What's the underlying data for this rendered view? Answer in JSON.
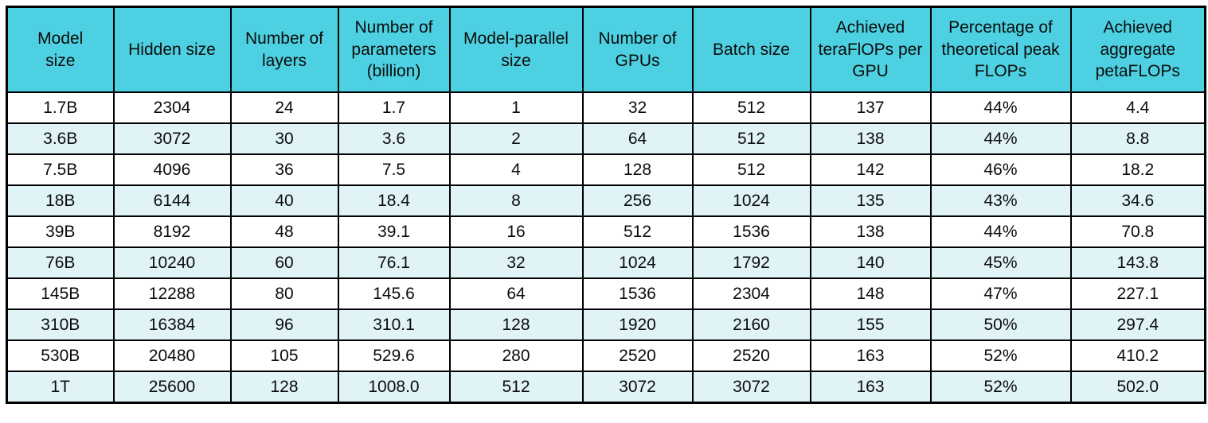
{
  "chart_data": {
    "type": "table",
    "columns": [
      "Model size",
      "Hidden size",
      "Number of layers",
      "Number of parameters (billion)",
      "Model-parallel size",
      "Number of GPUs",
      "Batch size",
      "Achieved teraFlOPs per GPU",
      "Percentage of theoretical peak FLOPs",
      "Achieved aggregate petaFLOPs"
    ],
    "rows": [
      [
        "1.7B",
        "2304",
        "24",
        "1.7",
        "1",
        "32",
        "512",
        "137",
        "44%",
        "4.4"
      ],
      [
        "3.6B",
        "3072",
        "30",
        "3.6",
        "2",
        "64",
        "512",
        "138",
        "44%",
        "8.8"
      ],
      [
        "7.5B",
        "4096",
        "36",
        "7.5",
        "4",
        "128",
        "512",
        "142",
        "46%",
        "18.2"
      ],
      [
        "18B",
        "6144",
        "40",
        "18.4",
        "8",
        "256",
        "1024",
        "135",
        "43%",
        "34.6"
      ],
      [
        "39B",
        "8192",
        "48",
        "39.1",
        "16",
        "512",
        "1536",
        "138",
        "44%",
        "70.8"
      ],
      [
        "76B",
        "10240",
        "60",
        "76.1",
        "32",
        "1024",
        "1792",
        "140",
        "45%",
        "143.8"
      ],
      [
        "145B",
        "12288",
        "80",
        "145.6",
        "64",
        "1536",
        "2304",
        "148",
        "47%",
        "227.1"
      ],
      [
        "310B",
        "16384",
        "96",
        "310.1",
        "128",
        "1920",
        "2160",
        "155",
        "50%",
        "297.4"
      ],
      [
        "530B",
        "20480",
        "105",
        "529.6",
        "280",
        "2520",
        "2520",
        "163",
        "52%",
        "410.2"
      ],
      [
        "1T",
        "25600",
        "128",
        "1008.0",
        "512",
        "3072",
        "3072",
        "163",
        "52%",
        "502.0"
      ]
    ]
  },
  "style": {
    "header_bg": "#4dd0e1",
    "row_alt_bg": "#e0f4f8",
    "row_bg": "#ffffff",
    "border_color": "#000000",
    "text_color": "#0c0c0c"
  }
}
